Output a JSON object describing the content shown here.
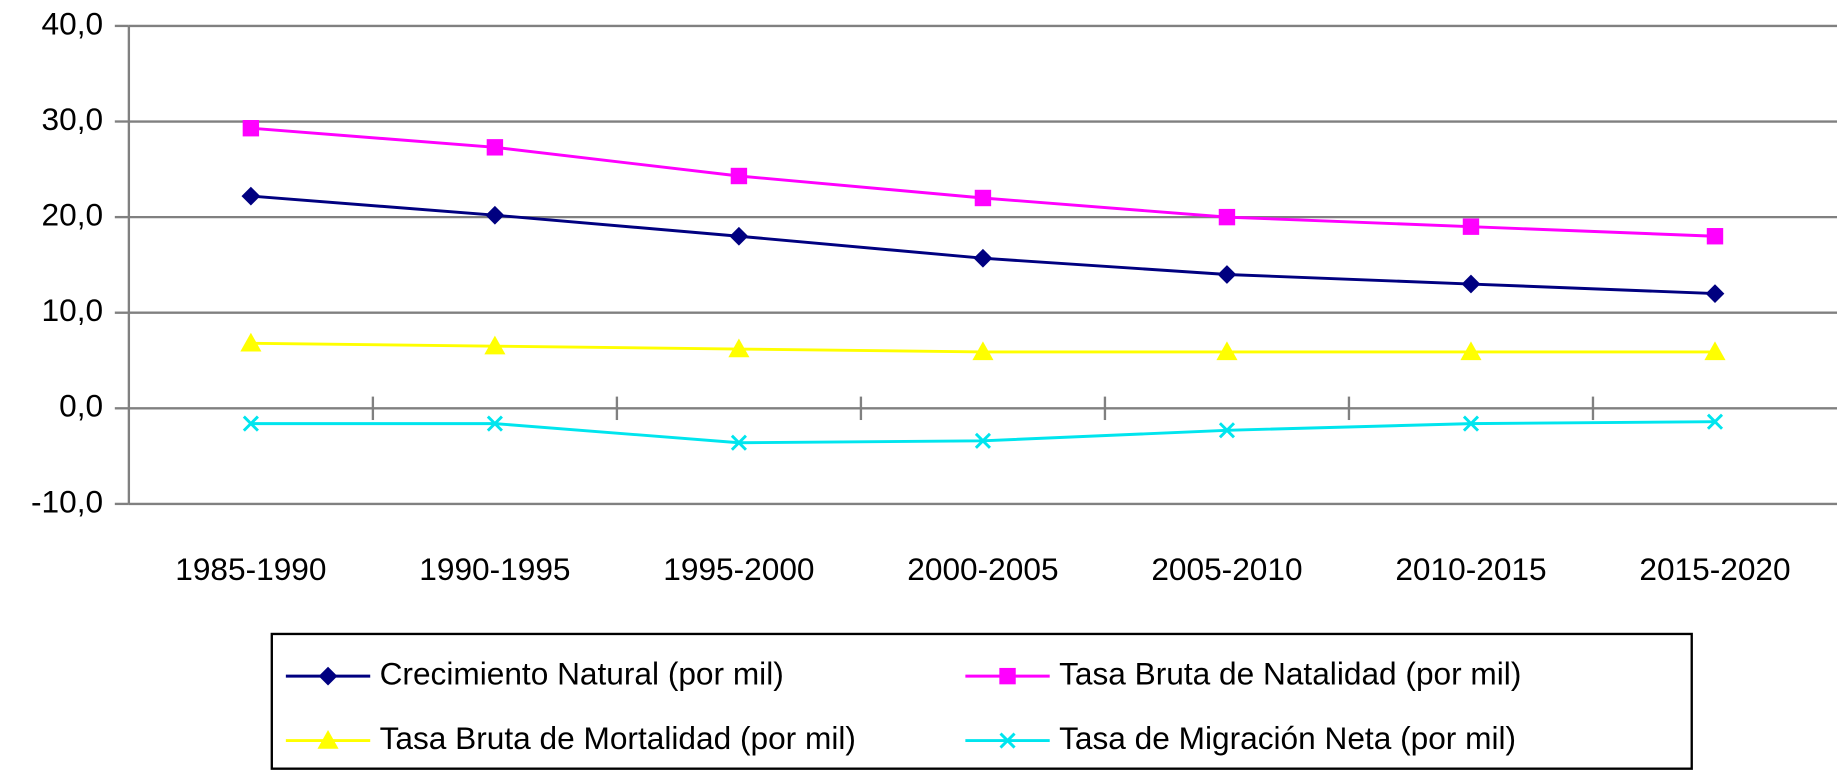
{
  "chart_data": {
    "type": "line",
    "categories": [
      "1985-1990",
      "1990-1995",
      "1995-2000",
      "2000-2005",
      "2005-2010",
      "2010-2015",
      "2015-2020"
    ],
    "series": [
      {
        "name": "Crecimiento Natural (por mil)",
        "color": "#000080",
        "marker": "diamond",
        "values": [
          22.2,
          20.2,
          18.0,
          15.7,
          14.0,
          13.0,
          12.0
        ]
      },
      {
        "name": "Tasa Bruta de Natalidad (por mil)",
        "color": "#ff00ff",
        "marker": "square",
        "values": [
          29.3,
          27.3,
          24.3,
          22.0,
          20.0,
          19.0,
          18.0
        ]
      },
      {
        "name": "Tasa Bruta de Mortalidad (por mil)",
        "color": "#ffff00",
        "marker": "triangle",
        "values": [
          6.8,
          6.5,
          6.2,
          5.9,
          5.9,
          5.9,
          5.9
        ]
      },
      {
        "name": "Tasa de Migración Neta (por mil)",
        "color": "#00e5ee",
        "marker": "x",
        "values": [
          -1.6,
          -1.6,
          -3.6,
          -3.4,
          -2.3,
          -1.6,
          -1.4
        ]
      }
    ],
    "ylim": [
      -10,
      40
    ],
    "yticks": [
      {
        "value": -10,
        "label": "-10,0"
      },
      {
        "value": 0,
        "label": "0,0"
      },
      {
        "value": 10,
        "label": "10,0"
      },
      {
        "value": 20,
        "label": "20,0"
      },
      {
        "value": 30,
        "label": "30,0"
      },
      {
        "value": 40,
        "label": "40,0"
      }
    ],
    "grid": true,
    "legend": "bottom"
  }
}
